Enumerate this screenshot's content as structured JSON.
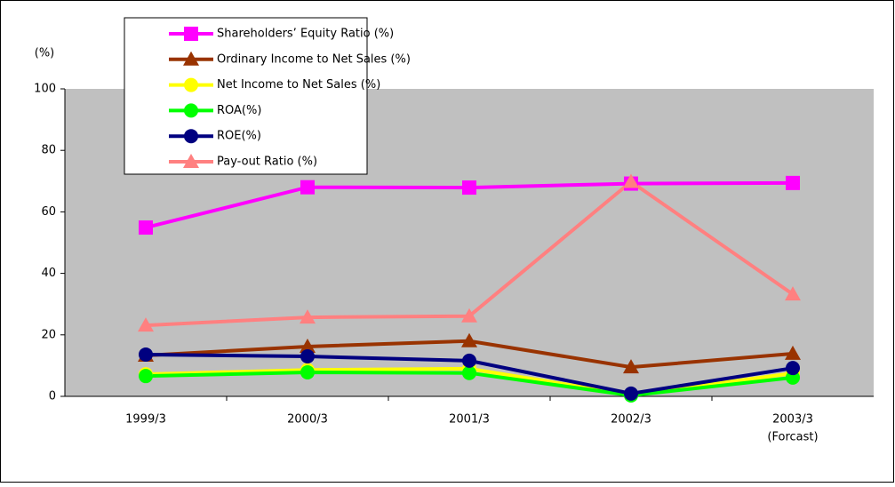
{
  "chart_data": {
    "type": "line",
    "y_label": "(%)",
    "categories": [
      "1999/3",
      "2000/3",
      "2001/3",
      "2002/3",
      "2003/3"
    ],
    "annotations": [
      "(Forcast)"
    ],
    "series": [
      {
        "name": "Shareholders’ Equity Ratio (%)",
        "color": "#ff00ff",
        "marker": "square",
        "values": [
          54.9,
          68.0,
          67.9,
          69.2,
          69.4
        ]
      },
      {
        "name": "Ordinary Income to Net Sales (%)",
        "color": "#993300",
        "marker": "triangle",
        "values": [
          13.3,
          16.2,
          18.0,
          9.5,
          13.9
        ]
      },
      {
        "name": "Net Income to Net Sales (%)",
        "color": "#ffff00",
        "marker": "circle",
        "values": [
          7.2,
          8.6,
          9.0,
          0.5,
          7.5
        ]
      },
      {
        "name": "ROA(%)",
        "color": "#00ff00",
        "marker": "circle",
        "values": [
          6.6,
          7.8,
          7.6,
          0.3,
          6.1
        ]
      },
      {
        "name": "ROE(%)",
        "color": "#000080",
        "marker": "circle",
        "values": [
          13.6,
          13.0,
          11.6,
          0.9,
          9.2
        ]
      },
      {
        "name": "Pay-out Ratio (%)",
        "color": "#ff8080",
        "marker": "triangle",
        "values": [
          23.1,
          25.7,
          26.1,
          69.8,
          33.2
        ]
      }
    ],
    "ylim": [
      0,
      100
    ],
    "yticks": [
      0,
      20,
      40,
      60,
      80,
      100
    ],
    "plot_background": "#c0c0c0",
    "grid": false
  }
}
